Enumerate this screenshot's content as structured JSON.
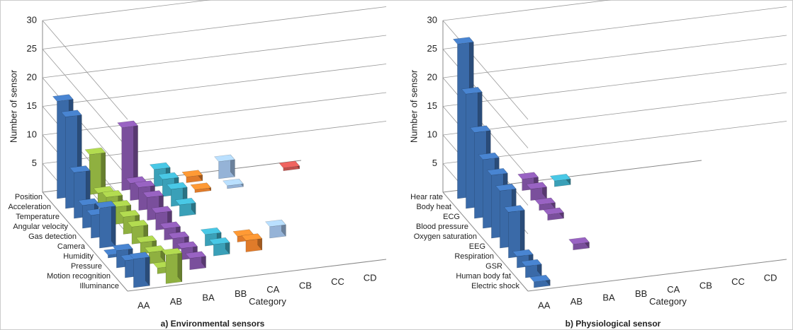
{
  "chart_data": [
    {
      "type": "bar3d",
      "title": "a) Environmental sensors",
      "ylabel": "Number of sensor",
      "xlabel": "Category",
      "categories": [
        "AA",
        "AB",
        "BA",
        "BB",
        "CA",
        "CB",
        "CC",
        "CD"
      ],
      "rows": [
        "Position",
        "Acceleration",
        "Temperature",
        "Angular velocity",
        "Gas detection",
        "Camera",
        "Humidity",
        "Pressure",
        "Motion recognition",
        "Illuminance"
      ],
      "colors": [
        "#3a6aa8",
        "#8fb040",
        "#7a4f9c",
        "#3aa0b8",
        "#e07b2a",
        "#95b3d7",
        "#c0504d",
        "#c0504d"
      ],
      "values": [
        [
          17,
          7,
          11,
          3,
          1,
          3,
          null,
          0.5
        ],
        [
          16,
          2,
          3,
          3,
          0.5,
          0.5,
          null,
          null
        ],
        [
          8,
          3,
          4,
          3,
          null,
          null,
          null,
          null
        ],
        [
          4,
          3,
          4,
          2,
          null,
          null,
          null,
          null
        ],
        [
          4,
          3,
          3,
          null,
          null,
          null,
          null,
          null
        ],
        [
          7,
          3,
          2,
          null,
          null,
          null,
          null,
          null
        ],
        [
          0.5,
          2,
          2,
          2,
          1,
          2,
          null,
          null
        ],
        [
          3,
          2,
          2,
          2,
          2,
          null,
          null,
          null
        ],
        [
          3,
          1,
          2,
          null,
          null,
          null,
          null,
          null
        ],
        [
          5,
          5,
          null,
          null,
          null,
          null,
          null,
          null
        ]
      ],
      "ylim": [
        0,
        30
      ],
      "yticks": [
        5,
        10,
        15,
        20,
        25,
        30
      ],
      "grid": true
    },
    {
      "type": "bar3d",
      "title": "b) Physiological sensor",
      "ylabel": "Number of sensor",
      "xlabel": "Category",
      "categories": [
        "AA",
        "AB",
        "BA",
        "BB",
        "CA",
        "CB",
        "CC",
        "CD"
      ],
      "rows": [
        "Hear rate",
        "Body heat",
        "ECG",
        "Blood pressure",
        "Oxygen saturation",
        "EEG",
        "Respiration",
        "GSR",
        "Human body fat",
        "Electric shock"
      ],
      "colors": [
        "#3a6aa8",
        "#8fb040",
        "#7a4f9c",
        "#3aa0b8",
        "#e07b2a",
        "#95b3d7",
        "#c0504d",
        "#c0504d"
      ],
      "values": [
        [
          27,
          1,
          2,
          1,
          null,
          null,
          null,
          null
        ],
        [
          20,
          null,
          2,
          null,
          null,
          null,
          null,
          null
        ],
        [
          15,
          null,
          1,
          null,
          null,
          null,
          null,
          null
        ],
        [
          12,
          null,
          1,
          null,
          null,
          null,
          null,
          null
        ],
        [
          11,
          null,
          null,
          null,
          null,
          null,
          null,
          null
        ],
        [
          10,
          null,
          null,
          null,
          null,
          null,
          null,
          null
        ],
        [
          8,
          null,
          1,
          null,
          null,
          null,
          null,
          null
        ],
        [
          2,
          null,
          null,
          null,
          null,
          null,
          null,
          null
        ],
        [
          2,
          null,
          null,
          null,
          null,
          null,
          null,
          null
        ],
        [
          1,
          null,
          null,
          null,
          null,
          null,
          null,
          null
        ]
      ],
      "ylim": [
        0,
        30
      ],
      "yticks": [
        5,
        10,
        15,
        20,
        25,
        30
      ],
      "grid": true
    }
  ]
}
